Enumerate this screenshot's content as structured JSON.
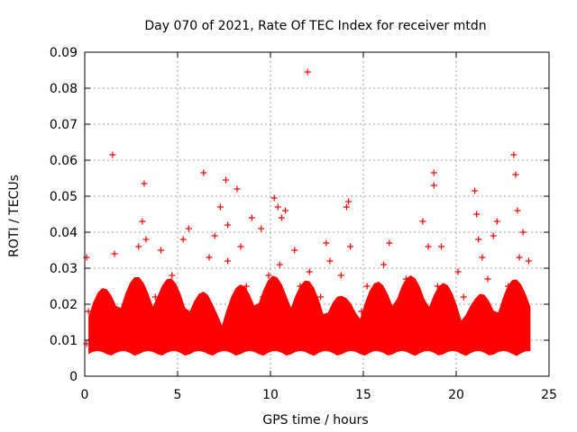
{
  "chart_data": {
    "type": "scatter",
    "title": "Day 070 of 2021, Rate Of TEC Index for receiver mtdn",
    "xlabel": "GPS time / hours",
    "ylabel": "ROTI / TECUs",
    "xlim": [
      0,
      25
    ],
    "ylim": [
      0,
      0.09
    ],
    "x_ticks": [
      0,
      5,
      10,
      15,
      20,
      25
    ],
    "x_tick_labels": [
      "0",
      "5",
      "10",
      "15",
      "20",
      "25"
    ],
    "y_ticks": [
      0,
      0.01,
      0.02,
      0.03,
      0.04,
      0.05,
      0.06,
      0.07,
      0.08,
      0.09
    ],
    "y_tick_labels": [
      "0",
      "0.01",
      "0.02",
      "0.03",
      "0.04",
      "0.05",
      "0.06",
      "0.07",
      "0.08",
      "0.09"
    ],
    "grid": true,
    "marker": "+",
    "series": [
      {
        "name": "ROTI",
        "color": "#ff0000",
        "x": [
          0.1,
          0.1,
          0.2,
          0.5,
          0.8,
          1.0,
          1.2,
          1.5,
          1.6,
          1.8,
          2.0,
          2.3,
          2.6,
          2.9,
          3.1,
          3.2,
          3.3,
          3.5,
          3.8,
          4.1,
          4.4,
          4.7,
          5.0,
          5.3,
          5.6,
          5.7,
          6.0,
          6.4,
          6.7,
          7.0,
          7.3,
          7.6,
          7.7,
          7.7,
          8.0,
          8.2,
          8.4,
          8.7,
          9.0,
          9.3,
          9.5,
          9.6,
          9.9,
          10.2,
          10.4,
          10.5,
          10.6,
          10.8,
          11.0,
          11.3,
          11.6,
          12.0,
          12.1,
          12.4,
          12.7,
          13.0,
          13.2,
          13.5,
          13.8,
          14.1,
          14.2,
          14.3,
          14.6,
          14.9,
          15.2,
          15.5,
          15.8,
          16.1,
          16.4,
          16.7,
          17.0,
          17.3,
          17.6,
          17.9,
          18.2,
          18.5,
          18.8,
          18.8,
          19.0,
          19.2,
          19.5,
          19.8,
          20.1,
          20.4,
          20.7,
          21.0,
          21.1,
          21.2,
          21.4,
          21.7,
          22.0,
          22.2,
          22.5,
          22.8,
          23.0,
          23.1,
          23.2,
          23.3,
          23.4,
          23.6,
          23.8,
          23.9
        ],
        "y": [
          0.033,
          0.009,
          0.018,
          0.011,
          0.008,
          0.014,
          0.022,
          0.0615,
          0.034,
          0.012,
          0.018,
          0.009,
          0.025,
          0.036,
          0.043,
          0.0535,
          0.038,
          0.012,
          0.022,
          0.035,
          0.013,
          0.028,
          0.018,
          0.038,
          0.041,
          0.011,
          0.019,
          0.0565,
          0.033,
          0.039,
          0.047,
          0.0545,
          0.042,
          0.032,
          0.018,
          0.052,
          0.036,
          0.025,
          0.044,
          0.013,
          0.041,
          0.022,
          0.028,
          0.0495,
          0.047,
          0.031,
          0.044,
          0.046,
          0.013,
          0.035,
          0.025,
          0.0845,
          0.029,
          0.011,
          0.022,
          0.037,
          0.032,
          0.015,
          0.028,
          0.047,
          0.0485,
          0.036,
          0.012,
          0.018,
          0.025,
          0.008,
          0.021,
          0.031,
          0.037,
          0.012,
          0.016,
          0.027,
          0.009,
          0.022,
          0.043,
          0.036,
          0.0565,
          0.053,
          0.025,
          0.036,
          0.011,
          0.018,
          0.029,
          0.022,
          0.008,
          0.0515,
          0.045,
          0.038,
          0.033,
          0.027,
          0.039,
          0.043,
          0.015,
          0.025,
          0.021,
          0.0615,
          0.056,
          0.046,
          0.033,
          0.04,
          0.012,
          0.032
        ]
      }
    ]
  }
}
